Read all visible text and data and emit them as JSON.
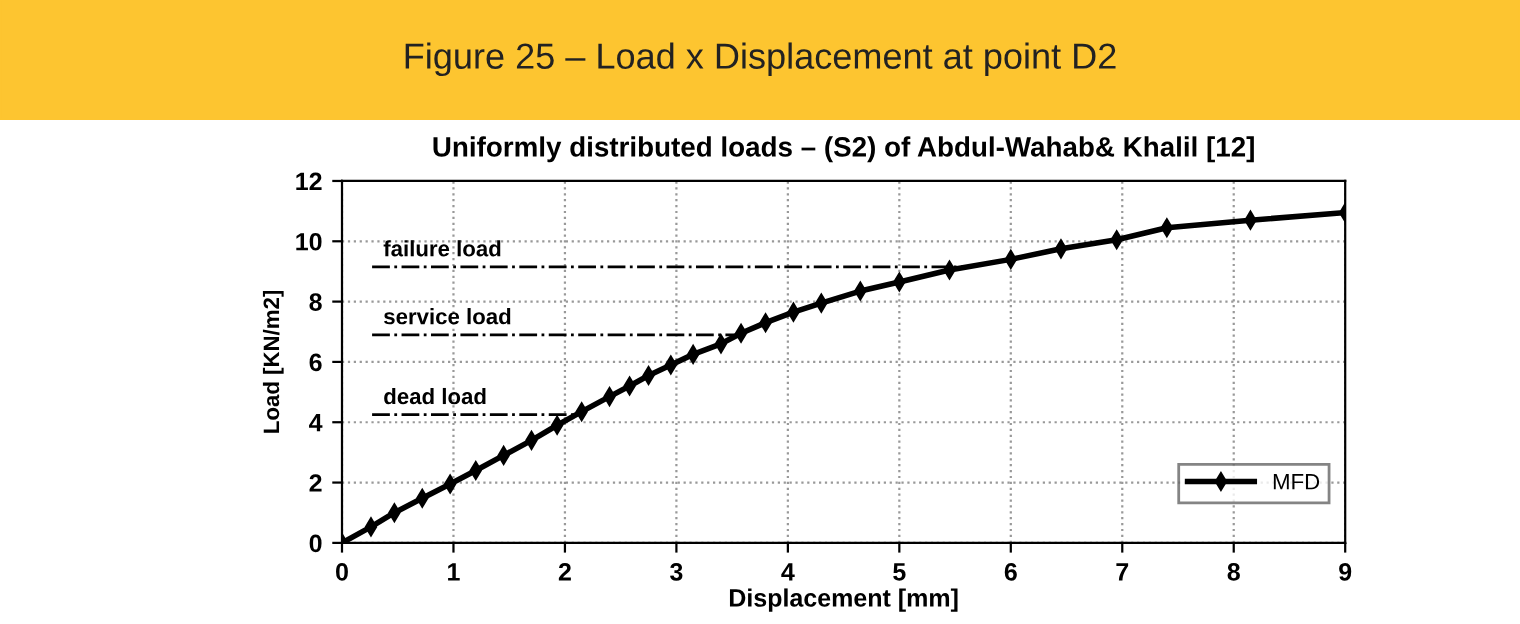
{
  "chart_data": {
    "type": "line",
    "title": "Figure 25 – Load x Displacement at point D2",
    "subtitle": "Uniformly distributed loads – (S2) of Abdul-Wahab& Khalil [12]",
    "xlabel": "Displacement [mm]",
    "ylabel": "Load [KN/m2]",
    "x": [
      0,
      0.26,
      0.47,
      0.72,
      0.97,
      1.2,
      1.45,
      1.7,
      1.93,
      2.15,
      2.4,
      2.58,
      2.75,
      2.95,
      3.15,
      3.4,
      3.58,
      3.8,
      4.05,
      4.3,
      4.65,
      5.0,
      5.45,
      6.0,
      6.45,
      6.95,
      7.4,
      8.15,
      9.0
    ],
    "series": [
      {
        "name": "MFD",
        "color": "#000000",
        "values": [
          0,
          0.53,
          1.0,
          1.48,
          1.95,
          2.4,
          2.9,
          3.4,
          3.9,
          4.35,
          4.85,
          5.2,
          5.55,
          5.9,
          6.25,
          6.6,
          6.95,
          7.3,
          7.65,
          7.95,
          8.35,
          8.65,
          9.05,
          9.4,
          9.75,
          10.05,
          10.45,
          10.7,
          10.95
        ]
      }
    ],
    "xlim": [
      0,
      9
    ],
    "xticks": [
      0,
      1,
      2,
      3,
      4,
      5,
      6,
      7,
      8,
      9
    ],
    "ylim": [
      0,
      12
    ],
    "yticks": [
      0,
      2,
      4,
      6,
      8,
      10,
      12
    ],
    "ref_lines": [
      {
        "axis": "y",
        "value": 9.15,
        "label": "failure load",
        "line_style": "dashdot"
      },
      {
        "axis": "y",
        "value": 6.9,
        "label": "service load",
        "line_style": "dashdot"
      },
      {
        "axis": "y",
        "value": 4.25,
        "label": "dead load",
        "line_style": "dashdot"
      }
    ],
    "grid": true,
    "legend": "bottom right",
    "marker": "diamond",
    "line_style": "solid"
  }
}
